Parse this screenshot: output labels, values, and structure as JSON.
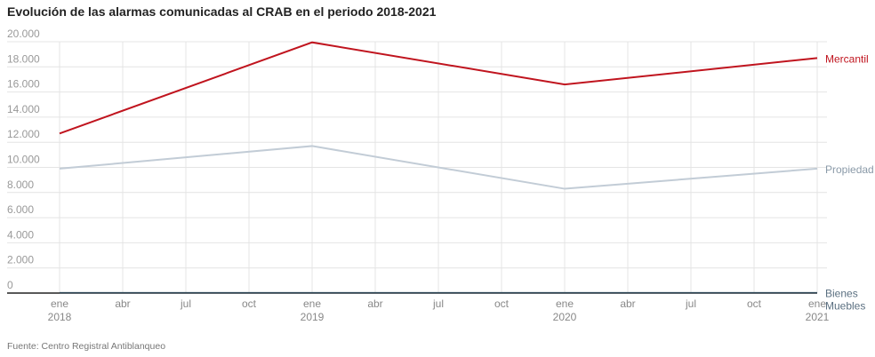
{
  "chart_data": {
    "type": "line",
    "title": "Evolución de las alarmas comunicadas al CRAB en el periodo 2018-2021",
    "source": "Fuente: Centro Registral Antiblanqueo",
    "x": [
      "2018-01",
      "2019-01",
      "2020-01",
      "2021-01"
    ],
    "x_ticks": [
      {
        "month": "ene",
        "year": "2018"
      },
      {
        "month": "abr",
        "year": ""
      },
      {
        "month": "jul",
        "year": ""
      },
      {
        "month": "oct",
        "year": ""
      },
      {
        "month": "ene",
        "year": "2019"
      },
      {
        "month": "abr",
        "year": ""
      },
      {
        "month": "jul",
        "year": ""
      },
      {
        "month": "oct",
        "year": ""
      },
      {
        "month": "ene",
        "year": "2020"
      },
      {
        "month": "abr",
        "year": ""
      },
      {
        "month": "jul",
        "year": ""
      },
      {
        "month": "oct",
        "year": ""
      },
      {
        "month": "ene",
        "year": "2021"
      }
    ],
    "y_ticks": [
      "0",
      "2.000",
      "4.000",
      "6.000",
      "8.000",
      "10.000",
      "12.000",
      "14.000",
      "16.000",
      "18.000",
      "20.000"
    ],
    "ylim": [
      0,
      20000
    ],
    "grid": true,
    "legend": "direct labels at right end",
    "series": [
      {
        "name": "Mercantil",
        "color": "#c0141e",
        "values": [
          12700,
          19950,
          16600,
          18700
        ]
      },
      {
        "name": "Propiedad",
        "color": "#c2ccd6",
        "values": [
          9900,
          11700,
          8300,
          9900
        ]
      },
      {
        "name": "Bienes Muebles",
        "color": "#2f4858",
        "values": [
          30,
          30,
          30,
          30
        ]
      }
    ]
  }
}
